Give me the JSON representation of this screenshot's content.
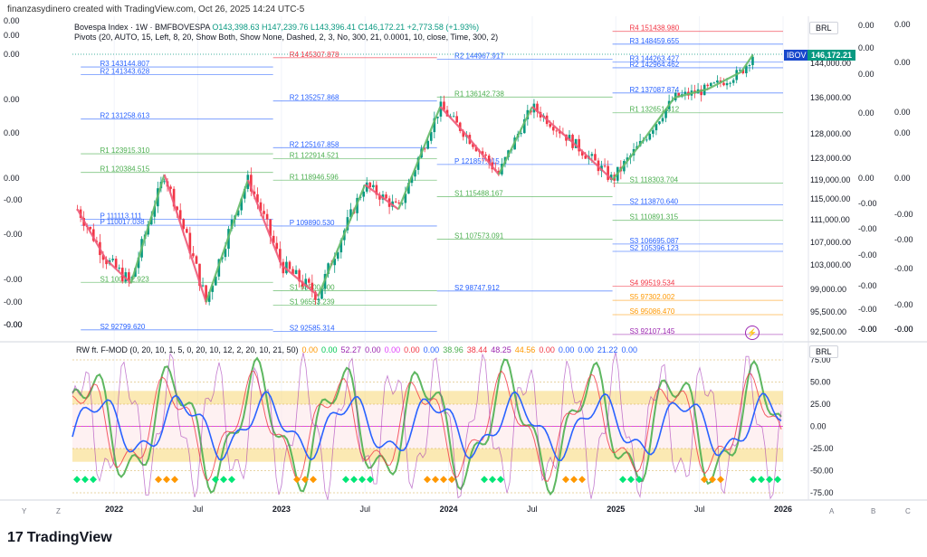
{
  "header": {
    "text": "finanzasydinero created with TradingView.com, Oct 26, 2025 14:24 UTC-5"
  },
  "legend": {
    "title": "Bovespa Index · 1W · BMFBOVESPA",
    "ohlc": "O143,398.63 H147,239.76 L143,396.41 C146,172.21 +2,773.58 (+1.93%)",
    "pivots": "Pivots (20, AUTO, 15, Left, 8, 20, Show Both, Show None, Dashed, 2, 3, No, 300, 21, 0.0001, 10, close, Time, 300, 2)"
  },
  "currency": "BRL",
  "currency_lower": "BRL",
  "ticker_tag": "IBOV",
  "price_tag": "146,172.21",
  "brand": "TradingView",
  "indicator_legend": [
    {
      "text": "RW ft. F-MOD (0, 20, 10, 1, 5, 0, 20, 10, 12, 2, 20, 10, 21, 50)",
      "color": "#131722"
    },
    {
      "text": "0.00",
      "color": "#ff9800"
    },
    {
      "text": "0.00",
      "color": "#00c853"
    },
    {
      "text": "52.27",
      "color": "#9c27b0"
    },
    {
      "text": "0.00",
      "color": "#9c27b0"
    },
    {
      "text": "0.00",
      "color": "#e040fb"
    },
    {
      "text": "0.00",
      "color": "#f23645"
    },
    {
      "text": "0.00",
      "color": "#2962ff"
    },
    {
      "text": "38.96",
      "color": "#4caf50"
    },
    {
      "text": "38.44",
      "color": "#f23645"
    },
    {
      "text": "48.25",
      "color": "#9c27b0"
    },
    {
      "text": "44.56",
      "color": "#ff9800"
    },
    {
      "text": "0.00",
      "color": "#f23645"
    },
    {
      "text": "0.00",
      "color": "#2962ff"
    },
    {
      "text": "0.00",
      "color": "#2962ff"
    },
    {
      "text": "21.22",
      "color": "#2962ff"
    },
    {
      "text": "0.00",
      "color": "#2962ff"
    }
  ],
  "left_axis_labels": [
    "0.00",
    "0.00",
    "0.00",
    "0.00",
    "0.00",
    "0.00",
    "-0.00",
    "-0.00",
    "-0.00",
    "-0.00",
    "-0.00",
    "-0.00"
  ],
  "right_axis_far_labels": [
    "0.00",
    "0.00",
    "0.00",
    "0.00",
    "0.00",
    "-0.00",
    "-0.00",
    "-0.00",
    "-0.00",
    "-0.00",
    "-0.00"
  ],
  "right_axis_near_labels": [
    "0.00",
    "0.00",
    "0.00",
    "0.00",
    "0.00",
    "-0.00",
    "-0.00",
    "-0.00",
    "-0.00",
    "-0.00",
    "-0.00",
    "-0.00"
  ],
  "bottom_tools": [
    "Y",
    "Z",
    "A",
    "B",
    "C"
  ],
  "chart_data": [
    {
      "type": "candlestick",
      "title": "Bovespa Index · 1W · BMFBOVESPA",
      "x_ticks": [
        "2022",
        "Jul",
        "2023",
        "Jul",
        "2024",
        "Jul",
        "2025",
        "Jul",
        "2026"
      ],
      "y_ticks": [
        144000,
        136000,
        128000,
        123000,
        119000,
        115000,
        111000,
        107000,
        103000,
        99000,
        95500,
        92500
      ],
      "y_tick_labels": [
        "144,000.00",
        "136,000.00",
        "128,000.00",
        "123,000.00",
        "119,000.00",
        "115,000.00",
        "111,000.00",
        "107,000.00",
        "103,000.00",
        "99,000.00",
        "95,500.00",
        "92,500.00"
      ],
      "last_close": 146172.21,
      "path": [
        [
          2021.78,
          113000
        ],
        [
          2021.95,
          104000
        ],
        [
          2022.1,
          100000
        ],
        [
          2022.3,
          120000
        ],
        [
          2022.55,
          97000
        ],
        [
          2022.8,
          119000
        ],
        [
          2023.0,
          103000
        ],
        [
          2023.22,
          98000
        ],
        [
          2023.5,
          118000
        ],
        [
          2023.7,
          113000
        ],
        [
          2023.95,
          134000
        ],
        [
          2024.1,
          128000
        ],
        [
          2024.3,
          120000
        ],
        [
          2024.5,
          134000
        ],
        [
          2024.75,
          126000
        ],
        [
          2024.98,
          119000
        ],
        [
          2025.15,
          126000
        ],
        [
          2025.35,
          136000
        ],
        [
          2025.55,
          138000
        ],
        [
          2025.75,
          142000
        ],
        [
          2025.82,
          146000
        ]
      ],
      "pivot_labels": [
        {
          "tag": "R3",
          "value": "143144.807",
          "color": "#2962ff"
        },
        {
          "tag": "R2",
          "value": "141343.628",
          "color": "#2962ff"
        },
        {
          "tag": "R2",
          "value": "131258.613",
          "color": "#2962ff"
        },
        {
          "tag": "R1",
          "value": "123915.310",
          "color": "#4caf50"
        },
        {
          "tag": "R1",
          "value": "120384.515",
          "color": "#4caf50"
        },
        {
          "tag": "P",
          "value": "111113.111",
          "color": "#2962ff"
        },
        {
          "tag": "P",
          "value": "110017.038",
          "color": "#2962ff"
        },
        {
          "tag": "S1",
          "value": "100142.923",
          "color": "#4caf50"
        },
        {
          "tag": "S2",
          "value": "92799.620",
          "color": "#2962ff"
        },
        {
          "tag": "R4",
          "value": "145307.878",
          "color": "#f23645"
        },
        {
          "tag": "R2",
          "value": "135257.868",
          "color": "#2962ff"
        },
        {
          "tag": "R2",
          "value": "125167.858",
          "color": "#2962ff"
        },
        {
          "tag": "R1",
          "value": "122914.521",
          "color": "#4caf50"
        },
        {
          "tag": "R1",
          "value": "118946.596",
          "color": "#4caf50"
        },
        {
          "tag": "P",
          "value": "109890.530",
          "color": "#2962ff"
        },
        {
          "tag": "S1",
          "value": "98800.000",
          "color": "#4caf50"
        },
        {
          "tag": "S1",
          "value": "96553.239",
          "color": "#4caf50"
        },
        {
          "tag": "S2",
          "value": "92585.314",
          "color": "#2962ff"
        },
        {
          "tag": "R2",
          "value": "144967.917",
          "color": "#2962ff"
        },
        {
          "tag": "R1",
          "value": "136142.738",
          "color": "#4caf50"
        },
        {
          "tag": "P",
          "value": "121857.915",
          "color": "#2962ff"
        },
        {
          "tag": "S1",
          "value": "115488.167",
          "color": "#4caf50"
        },
        {
          "tag": "S1",
          "value": "107573.091",
          "color": "#4caf50"
        },
        {
          "tag": "S2",
          "value": "98747.912",
          "color": "#2962ff"
        },
        {
          "tag": "R4",
          "value": "151438.980",
          "color": "#f23645"
        },
        {
          "tag": "R3",
          "value": "148459.655",
          "color": "#2962ff"
        },
        {
          "tag": "R3",
          "value": "144263.427",
          "color": "#2962ff"
        },
        {
          "tag": "R2",
          "value": "142964.462",
          "color": "#2962ff"
        },
        {
          "tag": "R2",
          "value": "137087.874",
          "color": "#2962ff"
        },
        {
          "tag": "R1",
          "value": "132651.812",
          "color": "#4caf50"
        },
        {
          "tag": "S1",
          "value": "118303.704",
          "color": "#4caf50"
        },
        {
          "tag": "S2",
          "value": "113870.640",
          "color": "#2962ff"
        },
        {
          "tag": "S1",
          "value": "110891.315",
          "color": "#4caf50"
        },
        {
          "tag": "S3",
          "value": "106695.087",
          "color": "#2962ff"
        },
        {
          "tag": "S2",
          "value": "105396.123",
          "color": "#2962ff"
        },
        {
          "tag": "S4",
          "value": "99519.534",
          "color": "#f23645"
        },
        {
          "tag": "S5",
          "value": "97302.002",
          "color": "#ff9800"
        },
        {
          "tag": "S6",
          "value": "95086.470",
          "color": "#ff9800"
        },
        {
          "tag": "S3",
          "value": "92107.145",
          "color": "#9c27b0"
        }
      ]
    },
    {
      "type": "line",
      "title": "RW ft. F-MOD",
      "y_ticks": [
        75,
        50,
        25,
        0,
        -25,
        -50,
        -75
      ],
      "y_tick_labels": [
        "75.00",
        "50.00",
        "25.00",
        "0.00",
        "-25.00",
        "-50.00",
        "-75.00"
      ],
      "bands": [
        [
          25,
          40
        ],
        [
          -40,
          -25
        ]
      ]
    }
  ]
}
